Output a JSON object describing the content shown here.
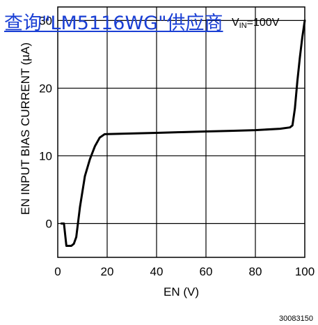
{
  "overlay_link": "查询\"LM5116WG\"供应商",
  "figure_id": "30083150",
  "annotation": {
    "prefix": "V",
    "sub": "IN",
    "suffix": "=100V"
  },
  "chart_data": {
    "type": "line",
    "xlabel": "EN (V)",
    "ylabel": "EN INPUT BIAS CURRENT (µA)",
    "xlim": [
      0,
      100
    ],
    "ylim": [
      -5,
      32
    ],
    "xticks": [
      0,
      20,
      40,
      60,
      80,
      100
    ],
    "yticks": [
      0,
      10,
      20,
      30
    ],
    "grid": true,
    "series": [
      {
        "x": [
          1.5,
          2.5,
          3.5,
          5.5,
          6.5,
          7.5,
          9,
          11,
          13,
          15,
          17,
          19,
          30,
          40,
          50,
          60,
          70,
          80,
          90,
          94,
          95,
          96,
          97,
          98,
          99,
          100
        ],
        "y": [
          0,
          0,
          -3.3,
          -3.3,
          -3,
          -2,
          2.5,
          7,
          9.5,
          11.4,
          12.7,
          13.2,
          13.3,
          13.4,
          13.5,
          13.6,
          13.7,
          13.8,
          14,
          14.2,
          14.5,
          17,
          21,
          24.5,
          27.5,
          30
        ]
      }
    ]
  }
}
